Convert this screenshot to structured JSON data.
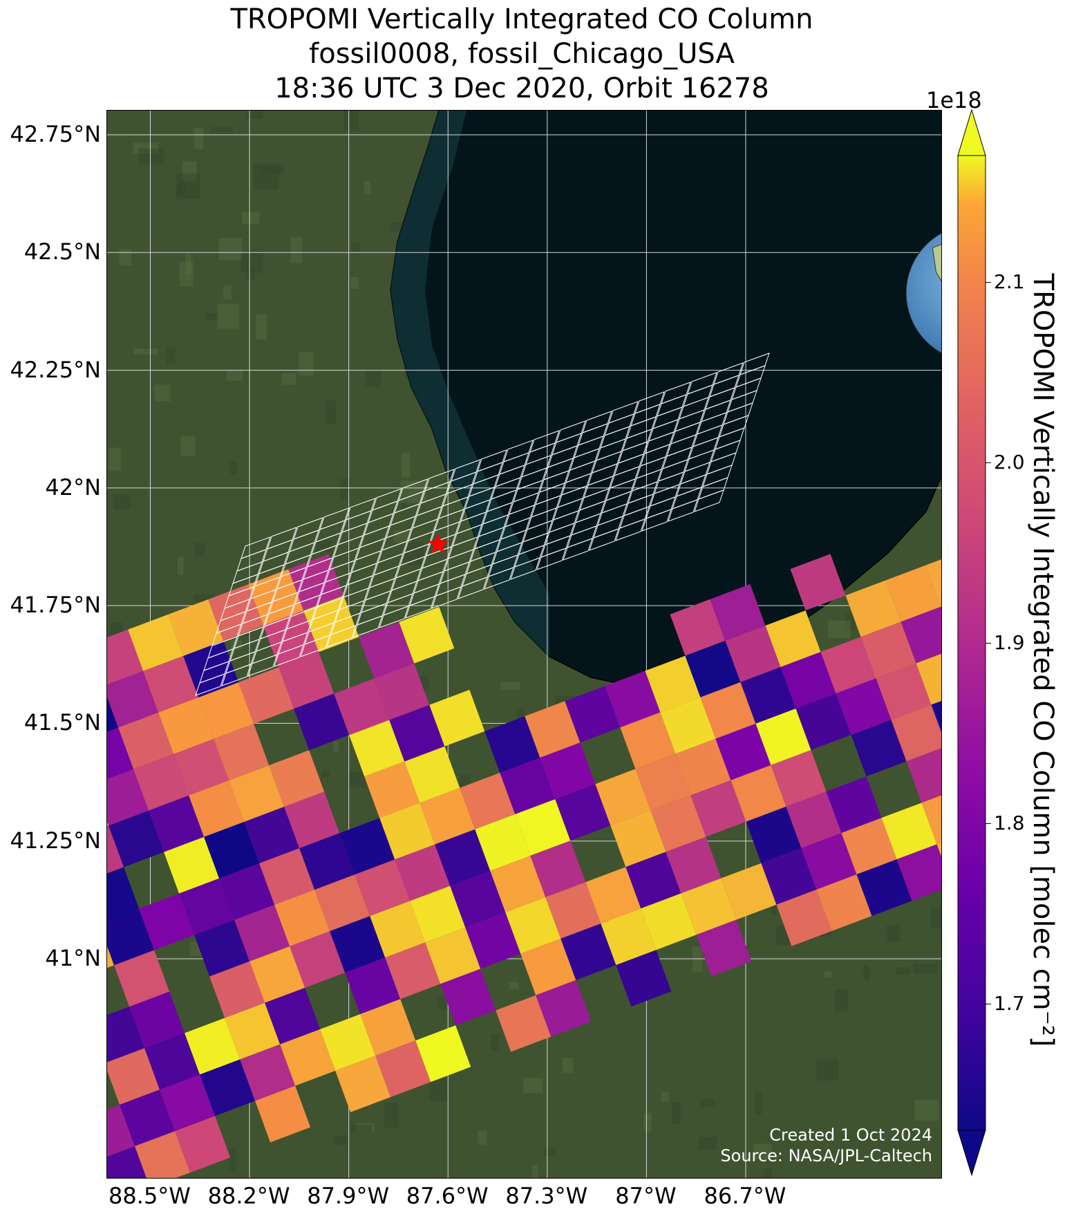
{
  "title": {
    "line1": "TROPOMI Vertically Integrated CO Column",
    "line2": "fossil0008, fossil_Chicago_USA",
    "line3": "18:36 UTC 3 Dec 2020, Orbit 16278"
  },
  "map": {
    "lat_ticks": [
      {
        "value": 42.75,
        "label": "42.75°N"
      },
      {
        "value": 42.5,
        "label": "42.5°N"
      },
      {
        "value": 42.25,
        "label": "42.25°N"
      },
      {
        "value": 42.0,
        "label": "42°N"
      },
      {
        "value": 41.75,
        "label": "41.75°N"
      },
      {
        "value": 41.5,
        "label": "41.5°N"
      },
      {
        "value": 41.25,
        "label": "41.25°N"
      },
      {
        "value": 41.0,
        "label": "41°N"
      }
    ],
    "lon_ticks": [
      {
        "value": -88.5,
        "label": "88.5°W"
      },
      {
        "value": -88.2,
        "label": "88.2°W"
      },
      {
        "value": -87.9,
        "label": "87.9°W"
      },
      {
        "value": -87.6,
        "label": "87.6°W"
      },
      {
        "value": -87.3,
        "label": "87.3°W"
      },
      {
        "value": -87.0,
        "label": "87°W"
      },
      {
        "value": -86.7,
        "label": "86.7°W"
      }
    ],
    "target_marker": {
      "name": "fossil_Chicago_USA",
      "lat": 41.88,
      "lon": -87.63,
      "color": "#ff0000"
    },
    "colors": {
      "water": "#03151b",
      "land": "#3f5330",
      "grid": "#d8d8d8",
      "filtered_outline": "#ffffff"
    }
  },
  "colorbar": {
    "label": "TROPOMI Vertically Integrated CO Column [molec cm⁻²]",
    "exponent": "1e18",
    "min": 1.63,
    "max": 2.17,
    "colormap": "plasma",
    "ticks": [
      {
        "value": 1.7,
        "label": "1.7"
      },
      {
        "value": 1.8,
        "label": "1.8"
      },
      {
        "value": 1.9,
        "label": "1.9"
      },
      {
        "value": 2.0,
        "label": "2.0"
      },
      {
        "value": 2.1,
        "label": "2.1"
      }
    ]
  },
  "credits": {
    "line1": "Created 1 Oct 2024",
    "line2": "Source: NASA/JPL-Caltech"
  }
}
